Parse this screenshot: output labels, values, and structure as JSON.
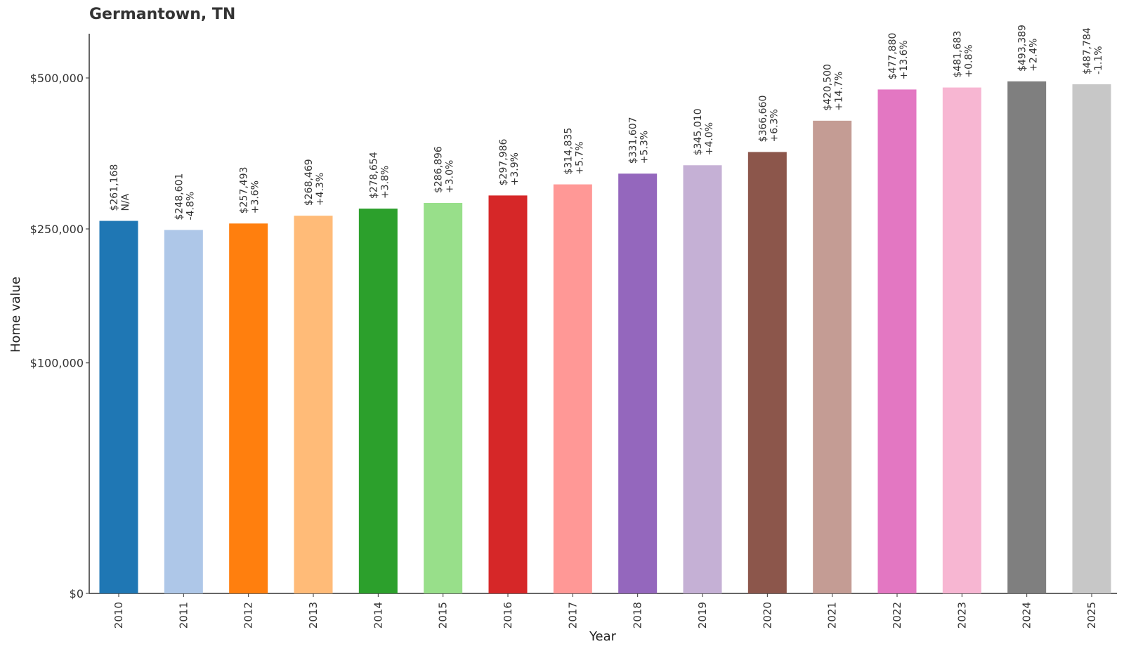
{
  "chart_data": {
    "type": "bar",
    "title": "Germantown, TN",
    "xlabel": "Year",
    "ylabel": "Home value",
    "categories": [
      "2010",
      "2011",
      "2012",
      "2013",
      "2014",
      "2015",
      "2016",
      "2017",
      "2018",
      "2019",
      "2020",
      "2021",
      "2022",
      "2023",
      "2024",
      "2025"
    ],
    "values": [
      261168,
      248601,
      257493,
      268469,
      278654,
      286896,
      297986,
      314835,
      331607,
      345010,
      366660,
      420500,
      477880,
      481683,
      493389,
      487784
    ],
    "value_labels": [
      "$261,168",
      "$248,601",
      "$257,493",
      "$268,469",
      "$278,654",
      "$286,896",
      "$297,986",
      "$314,835",
      "$331,607",
      "$345,010",
      "$366,660",
      "$420,500",
      "$477,880",
      "$481,683",
      "$493,389",
      "$487,784"
    ],
    "change_labels": [
      "N/A",
      "-4.8%",
      "+3.6%",
      "+4.3%",
      "+3.8%",
      "+3.0%",
      "+3.9%",
      "+5.7%",
      "+5.3%",
      "+4.0%",
      "+6.3%",
      "+14.7%",
      "+13.6%",
      "+0.8%",
      "+2.4%",
      "-1.1%"
    ],
    "colors": [
      "#1f77b4",
      "#aec7e8",
      "#ff7f0e",
      "#ffbb78",
      "#2ca02c",
      "#98df8a",
      "#d62728",
      "#ff9896",
      "#9467bd",
      "#c5b0d5",
      "#8c564b",
      "#c49c94",
      "#e377c2",
      "#f7b6d2",
      "#7f7f7f",
      "#c7c7c7"
    ],
    "yscale": "sqrt",
    "ylim": [
      0,
      560000
    ],
    "yticks": [
      0,
      100000,
      250000,
      500000
    ],
    "ytick_labels": [
      "$0",
      "$100,000",
      "$250,000",
      "$500,000"
    ],
    "grid": false,
    "legend": "none"
  }
}
